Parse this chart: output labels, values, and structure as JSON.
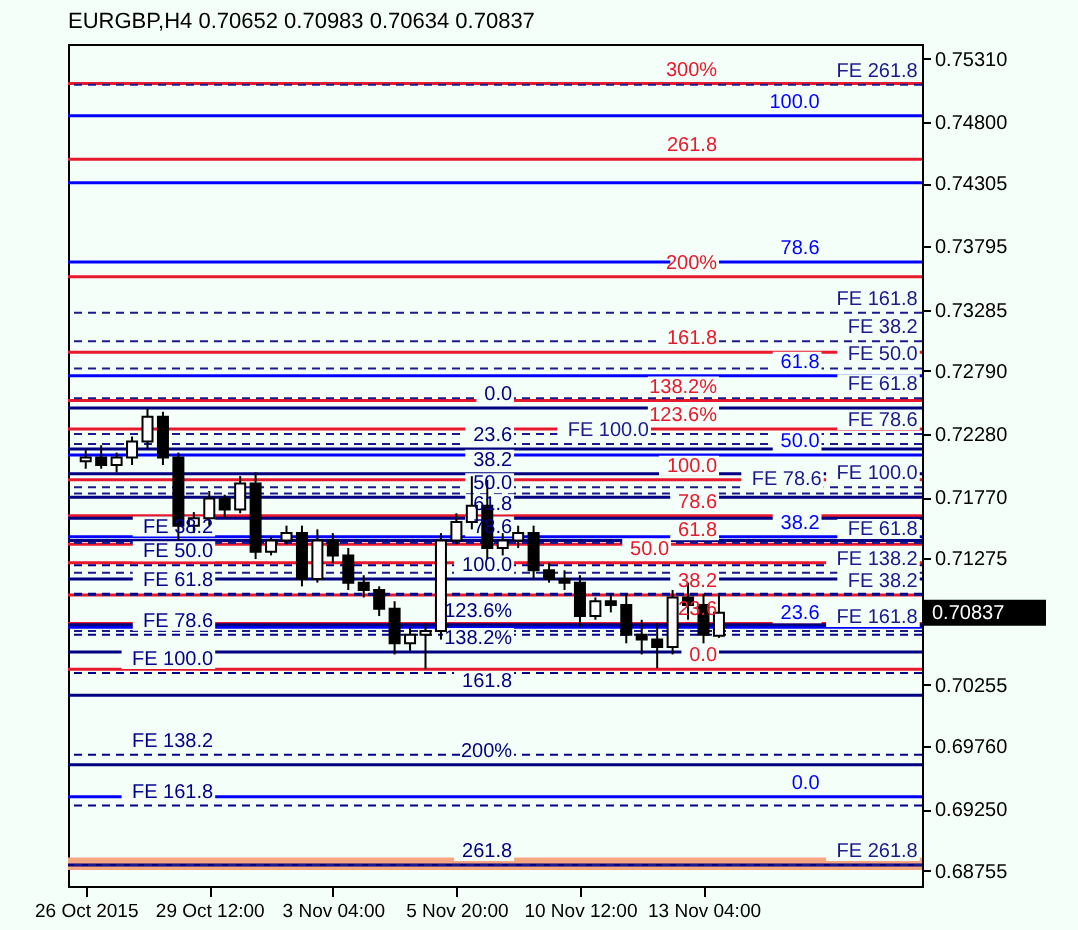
{
  "chart_data": {
    "type": "candlestick",
    "title": "EURGBP,H4 0.70652 0.70983 0.70634 0.70837",
    "categories": [
      "26 Oct 2015",
      null,
      null,
      null,
      null,
      null,
      null,
      null,
      "29 Oct 12:00",
      null,
      null,
      null,
      null,
      null,
      null,
      null,
      "3 Nov 04:00",
      null,
      null,
      null,
      null,
      null,
      null,
      null,
      "5 Nov 20:00",
      null,
      null,
      null,
      null,
      null,
      null,
      null,
      "10 Nov 12:00",
      null,
      null,
      null,
      null,
      null,
      null,
      null,
      "13 Nov 04:00",
      null,
      null,
      null,
      null,
      null,
      null,
      null,
      null,
      null,
      null,
      null,
      null,
      null
    ],
    "ohlc": [
      [
        0.7206,
        0.7216,
        0.72,
        0.7209
      ],
      [
        0.7209,
        0.7219,
        0.72,
        0.7203
      ],
      [
        0.7203,
        0.7213,
        0.7197,
        0.7209
      ],
      [
        0.7209,
        0.7226,
        0.7203,
        0.7222
      ],
      [
        0.7222,
        0.7249,
        0.7216,
        0.7242
      ],
      [
        0.7242,
        0.7246,
        0.7203,
        0.7209
      ],
      [
        0.7209,
        0.7213,
        0.7142,
        0.7154
      ],
      [
        0.7154,
        0.7165,
        0.7148,
        0.716
      ],
      [
        0.716,
        0.7182,
        0.7154,
        0.7176
      ],
      [
        0.7176,
        0.7179,
        0.716,
        0.7167
      ],
      [
        0.7167,
        0.7194,
        0.7164,
        0.7188
      ],
      [
        0.7188,
        0.7197,
        0.7127,
        0.7133
      ],
      [
        0.7133,
        0.7145,
        0.713,
        0.7142
      ],
      [
        0.7142,
        0.7154,
        0.7139,
        0.7148
      ],
      [
        0.7148,
        0.7154,
        0.7105,
        0.7111
      ],
      [
        0.7111,
        0.7151,
        0.7108,
        0.7142
      ],
      [
        0.7142,
        0.7148,
        0.7124,
        0.713
      ],
      [
        0.713,
        0.7136,
        0.7102,
        0.7108
      ],
      [
        0.7108,
        0.7114,
        0.7096,
        0.7102
      ],
      [
        0.7102,
        0.7105,
        0.7081,
        0.7087
      ],
      [
        0.7087,
        0.7093,
        0.705,
        0.7059
      ],
      [
        0.7059,
        0.7072,
        0.7053,
        0.7066
      ],
      [
        0.7066,
        0.7075,
        0.7038,
        0.7069
      ],
      [
        0.7069,
        0.7148,
        0.7062,
        0.7142
      ],
      [
        0.7142,
        0.7164,
        0.7139,
        0.7157
      ],
      [
        0.7157,
        0.7194,
        0.7151,
        0.717
      ],
      [
        0.717,
        0.7191,
        0.7127,
        0.7136
      ],
      [
        0.7136,
        0.7148,
        0.713,
        0.7142
      ],
      [
        0.7142,
        0.7154,
        0.7136,
        0.7148
      ],
      [
        0.7148,
        0.7154,
        0.7111,
        0.7118
      ],
      [
        0.7118,
        0.7124,
        0.7108,
        0.7111
      ],
      [
        0.7111,
        0.7118,
        0.7102,
        0.7108
      ],
      [
        0.7108,
        0.7114,
        0.7072,
        0.7081
      ],
      [
        0.7081,
        0.7096,
        0.7078,
        0.7093
      ],
      [
        0.7093,
        0.7099,
        0.7084,
        0.709
      ],
      [
        0.709,
        0.7099,
        0.7059,
        0.7066
      ],
      [
        0.7066,
        0.7078,
        0.705,
        0.7062
      ],
      [
        0.7062,
        0.7075,
        0.7039,
        0.7056
      ],
      [
        0.7056,
        0.7102,
        0.705,
        0.7096
      ],
      [
        0.7096,
        0.7108,
        0.7078,
        0.709
      ],
      [
        0.709,
        0.7099,
        0.7059,
        0.7066
      ],
      [
        0.70652,
        0.70983,
        0.70634,
        0.70837
      ],
      null,
      null,
      null,
      null,
      null,
      null,
      null,
      null,
      null,
      null,
      null,
      null
    ],
    "ylim": [
      0.6863,
      0.7543
    ],
    "yticks": [
      {
        "value": 0.7531,
        "label": "0.75310"
      },
      {
        "value": 0.748,
        "label": "0.74800"
      },
      {
        "value": 0.74305,
        "label": "0.74305"
      },
      {
        "value": 0.73795,
        "label": "0.73795"
      },
      {
        "value": 0.73285,
        "label": "0.73285"
      },
      {
        "value": 0.7279,
        "label": "0.72790"
      },
      {
        "value": 0.7228,
        "label": "0.72280"
      },
      {
        "value": 0.7177,
        "label": "0.71770"
      },
      {
        "value": 0.71275,
        "label": "0.71275"
      },
      {
        "value": 0.70255,
        "label": "0.70255"
      },
      {
        "value": 0.6976,
        "label": "0.69760"
      },
      {
        "value": 0.6925,
        "label": "0.69250"
      },
      {
        "value": 0.68755,
        "label": "0.68755"
      }
    ],
    "grid": false,
    "ref_lines": [
      {
        "axis": "y",
        "value": 0.7511,
        "color": "#e8192c",
        "line_style": "solid"
      },
      {
        "axis": "y",
        "value": 0.745,
        "color": "#e8192c",
        "line_style": "solid"
      },
      {
        "axis": "y",
        "value": 0.7355,
        "color": "#e8192c",
        "line_style": "solid"
      },
      {
        "axis": "y",
        "value": 0.7294,
        "color": "#e8192c",
        "line_style": "solid"
      },
      {
        "axis": "y",
        "value": 0.7255,
        "color": "#e8192c",
        "line_style": "solid"
      },
      {
        "axis": "y",
        "value": 0.7232,
        "color": "#e8192c",
        "line_style": "solid"
      },
      {
        "axis": "y",
        "value": 0.7191,
        "color": "#e8192c",
        "line_style": "solid"
      },
      {
        "axis": "y",
        "value": 0.7162,
        "color": "#e8192c",
        "line_style": "solid"
      },
      {
        "axis": "y",
        "value": 0.7139,
        "color": "#e8192c",
        "line_style": "solid"
      },
      {
        "axis": "y",
        "value": 0.7124,
        "color": "#e8192c",
        "line_style": "solid"
      },
      {
        "axis": "y",
        "value": 0.7098,
        "color": "#e8192c",
        "line_style": "solid"
      },
      {
        "axis": "y",
        "value": 0.7075,
        "color": "#e8192c",
        "line_style": "solid"
      },
      {
        "axis": "y",
        "value": 0.7038,
        "color": "#e8192c",
        "line_style": "solid"
      },
      {
        "axis": "y",
        "value": 0.7485,
        "color": "#0000ff",
        "line_style": "solid"
      },
      {
        "axis": "y",
        "value": 0.7367,
        "color": "#0000ff",
        "line_style": "solid"
      },
      {
        "axis": "y",
        "value": 0.7275,
        "color": "#0000ff",
        "line_style": "solid"
      },
      {
        "axis": "y",
        "value": 0.7211,
        "color": "#0000ff",
        "line_style": "solid"
      },
      {
        "axis": "y",
        "value": 0.7145,
        "color": "#0000ff",
        "line_style": "solid"
      },
      {
        "axis": "y",
        "value": 0.7072,
        "color": "#0000ff",
        "line_style": "solid"
      },
      {
        "axis": "y",
        "value": 0.6935,
        "color": "#0000ff",
        "line_style": "solid"
      },
      {
        "axis": "y",
        "value": 0.751,
        "color": "#1a1a8c",
        "line_style": "dashed"
      },
      {
        "axis": "y",
        "value": 0.7326,
        "color": "#1a1a8c",
        "line_style": "dashed"
      },
      {
        "axis": "y",
        "value": 0.7303,
        "color": "#1a1a8c",
        "line_style": "dashed"
      },
      {
        "axis": "y",
        "value": 0.7281,
        "color": "#1a1a8c",
        "line_style": "dashed"
      },
      {
        "axis": "y",
        "value": 0.7257,
        "color": "#1a1a8c",
        "line_style": "dashed"
      },
      {
        "axis": "y",
        "value": 0.7228,
        "color": "#1a1a8c",
        "line_style": "dashed"
      },
      {
        "axis": "y",
        "value": 0.722,
        "color": "#1a1a8c",
        "line_style": "dashed"
      },
      {
        "axis": "y",
        "value": 0.7185,
        "color": "#1a1a8c",
        "line_style": "dashed"
      },
      {
        "axis": "y",
        "value": 0.718,
        "color": "#1a1a8c",
        "line_style": "dashed"
      },
      {
        "axis": "y",
        "value": 0.714,
        "color": "#1a1a8c",
        "line_style": "dashed"
      },
      {
        "axis": "y",
        "value": 0.7116,
        "color": "#1a1a8c",
        "line_style": "dashed"
      },
      {
        "axis": "y",
        "value": 0.7098,
        "color": "#1a1a8c",
        "line_style": "dashed"
      },
      {
        "axis": "y",
        "value": 0.7069,
        "color": "#1a1a8c",
        "line_style": "dashed"
      },
      {
        "axis": "y",
        "value": 0.688,
        "color": "#1a1a8c",
        "line_style": "dashed"
      },
      {
        "axis": "y",
        "value": 0.7249,
        "color": "#000080",
        "line_style": "solid"
      },
      {
        "axis": "y",
        "value": 0.7216,
        "color": "#000080",
        "line_style": "solid"
      },
      {
        "axis": "y",
        "value": 0.7196,
        "color": "#000080",
        "line_style": "solid"
      },
      {
        "axis": "y",
        "value": 0.7177,
        "color": "#000080",
        "line_style": "solid"
      },
      {
        "axis": "y",
        "value": 0.716,
        "color": "#000080",
        "line_style": "solid"
      },
      {
        "axis": "y",
        "value": 0.7142,
        "color": "#000080",
        "line_style": "solid"
      },
      {
        "axis": "y",
        "value": 0.7111,
        "color": "#000080",
        "line_style": "solid"
      },
      {
        "axis": "y",
        "value": 0.7074,
        "color": "#000080",
        "line_style": "solid"
      },
      {
        "axis": "y",
        "value": 0.7052,
        "color": "#000080",
        "line_style": "solid"
      },
      {
        "axis": "y",
        "value": 0.7017,
        "color": "#000080",
        "line_style": "solid"
      },
      {
        "axis": "y",
        "value": 0.6961,
        "color": "#000080",
        "line_style": "solid"
      },
      {
        "axis": "y",
        "value": 0.688,
        "color": "#000080",
        "line_style": "solid"
      },
      {
        "axis": "y",
        "value": 0.7142,
        "color": "#00008b",
        "line_style": "dashed"
      },
      {
        "axis": "y",
        "value": 0.7122,
        "color": "#00008b",
        "line_style": "dashed"
      },
      {
        "axis": "y",
        "value": 0.7099,
        "color": "#00008b",
        "line_style": "dashed"
      },
      {
        "axis": "y",
        "value": 0.7066,
        "color": "#00008b",
        "line_style": "dashed"
      },
      {
        "axis": "y",
        "value": 0.7035,
        "color": "#00008b",
        "line_style": "dashed"
      },
      {
        "axis": "y",
        "value": 0.6969,
        "color": "#00008b",
        "line_style": "dashed"
      },
      {
        "axis": "y",
        "value": 0.6928,
        "color": "#00008b",
        "line_style": "dashed"
      },
      {
        "axis": "y",
        "value": 0.7431,
        "color": "#0000ff",
        "line_style": "solid"
      }
    ],
    "annotations": [
      {
        "text": "300%",
        "y": 0.7511
      },
      {
        "text": "261.8",
        "y": 0.745
      },
      {
        "text": "200%",
        "y": 0.7355
      },
      {
        "text": "161.8",
        "y": 0.7294
      },
      {
        "text": "138.2%",
        "y": 0.7255
      },
      {
        "text": "123.6%",
        "y": 0.7232
      },
      {
        "text": "100.0",
        "y": 0.7191
      },
      {
        "text": "78.6",
        "y": 0.7162
      },
      {
        "text": "61.8",
        "y": 0.7139
      },
      {
        "text": "50.0",
        "y": 0.7124
      },
      {
        "text": "38.2",
        "y": 0.7098
      },
      {
        "text": "23.6",
        "y": 0.7075
      },
      {
        "text": "0.0",
        "y": 0.7038
      },
      {
        "text": "100.0",
        "y": 0.7485
      },
      {
        "text": "78.6",
        "y": 0.7367
      },
      {
        "text": "61.8",
        "y": 0.7275
      },
      {
        "text": "50.0",
        "y": 0.7211
      },
      {
        "text": "38.2",
        "y": 0.7145
      },
      {
        "text": "23.6",
        "y": 0.7072
      },
      {
        "text": "0.0",
        "y": 0.6935
      },
      {
        "text": "FE 261.8",
        "y": 0.751
      },
      {
        "text": "FE 161.8",
        "y": 0.7326
      },
      {
        "text": "FE 38.2",
        "y": 0.7303
      },
      {
        "text": "FE 50.0",
        "y": 0.7281
      },
      {
        "text": "FE 61.8",
        "y": 0.7257
      },
      {
        "text": "FE 78.6",
        "y": 0.7228
      },
      {
        "text": "FE 100.0",
        "y": 0.722
      },
      {
        "text": "FE 100.0",
        "y": 0.7185
      },
      {
        "text": "FE 78.6",
        "y": 0.718
      },
      {
        "text": "FE 61.8",
        "y": 0.714
      },
      {
        "text": "FE 138.2",
        "y": 0.7116
      },
      {
        "text": "FE 38.2",
        "y": 0.7098
      },
      {
        "text": "FE 161.8",
        "y": 0.7069
      },
      {
        "text": "FE 261.8",
        "y": 0.688
      },
      {
        "text": "0.0",
        "y": 0.7249
      },
      {
        "text": "23.6",
        "y": 0.7216
      },
      {
        "text": "38.2",
        "y": 0.7196
      },
      {
        "text": "50.0",
        "y": 0.7177
      },
      {
        "text": "61.8",
        "y": 0.716
      },
      {
        "text": "78.6",
        "y": 0.7142
      },
      {
        "text": "100.0",
        "y": 0.7111
      },
      {
        "text": "123.6%",
        "y": 0.7074
      },
      {
        "text": "138.2%",
        "y": 0.7052
      },
      {
        "text": "161.8",
        "y": 0.7017
      },
      {
        "text": "200%",
        "y": 0.6961
      },
      {
        "text": "261.8",
        "y": 0.688
      },
      {
        "text": "FE 38.2",
        "y": 0.7142
      },
      {
        "text": "FE 50.0",
        "y": 0.7122
      },
      {
        "text": "FE 61.8",
        "y": 0.7099
      },
      {
        "text": "FE 78.6",
        "y": 0.7066
      },
      {
        "text": "FE 100.0",
        "y": 0.7035
      },
      {
        "text": "FE 138.2",
        "y": 0.6969
      },
      {
        "text": "FE 161.8",
        "y": 0.6928
      },
      "0.70837"
    ],
    "bands": [
      {
        "axis": "y",
        "from": 0.6876,
        "to": 0.6886,
        "color": "#f4a582"
      }
    ]
  }
}
